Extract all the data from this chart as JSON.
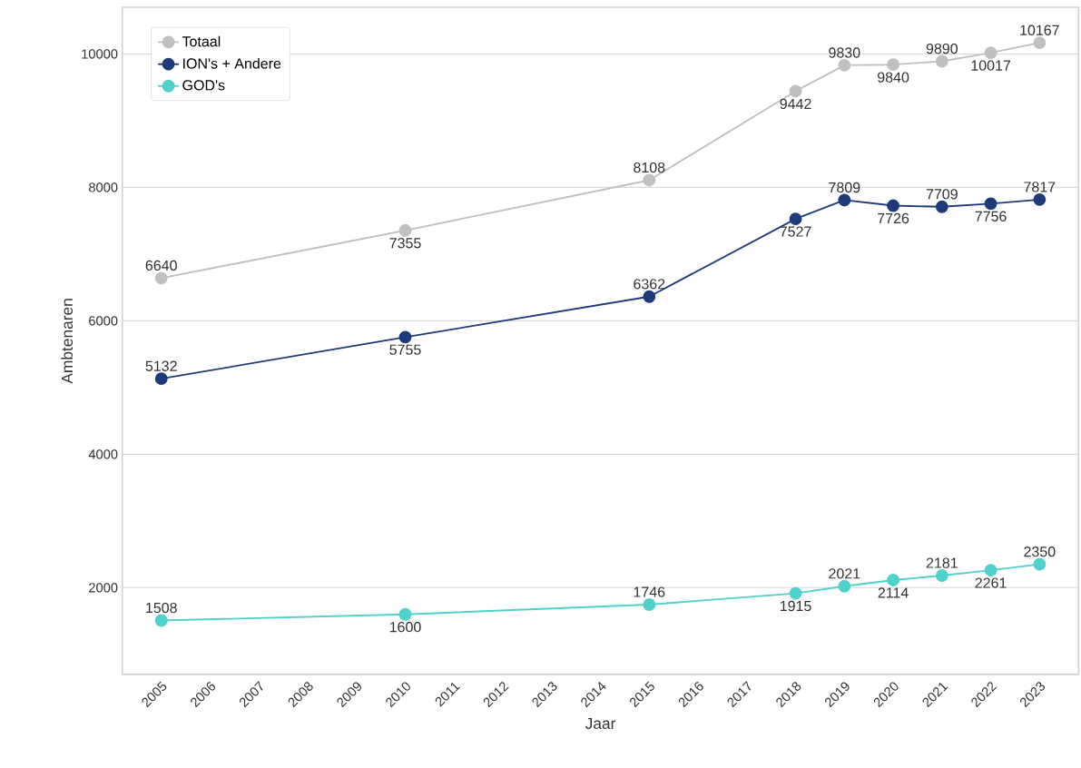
{
  "chart_data": {
    "type": "line",
    "xlabel": "Jaar",
    "ylabel": "Ambtenaren",
    "x": [
      2005,
      2010,
      2015,
      2018,
      2019,
      2020,
      2021,
      2022,
      2023
    ],
    "series": [
      {
        "name": "Totaal",
        "color": "#c0c0c0",
        "values": [
          6640,
          7355,
          8108,
          9442,
          9830,
          9840,
          9890,
          10017,
          10167
        ]
      },
      {
        "name": "ION's + Andere",
        "color": "#1f3a7a",
        "values": [
          5132,
          5755,
          6362,
          7527,
          7809,
          7726,
          7709,
          7756,
          7817
        ]
      },
      {
        "name": "GOD's",
        "color": "#4fd1cc",
        "values": [
          1508,
          1600,
          1746,
          1915,
          2021,
          2114,
          2181,
          2261,
          2350
        ]
      }
    ],
    "xlim": [
      2004.2,
      2023.8
    ],
    "ylim": [
      700,
      10700
    ],
    "xticks": [
      2005,
      2006,
      2007,
      2008,
      2009,
      2010,
      2011,
      2012,
      2013,
      2014,
      2015,
      2016,
      2017,
      2018,
      2019,
      2020,
      2021,
      2022,
      2023
    ],
    "yticks": [
      2000,
      4000,
      6000,
      8000,
      10000
    ],
    "grid": "y",
    "legend": "top left",
    "marker": "circle",
    "line_style": "solid",
    "data_labels": true
  }
}
